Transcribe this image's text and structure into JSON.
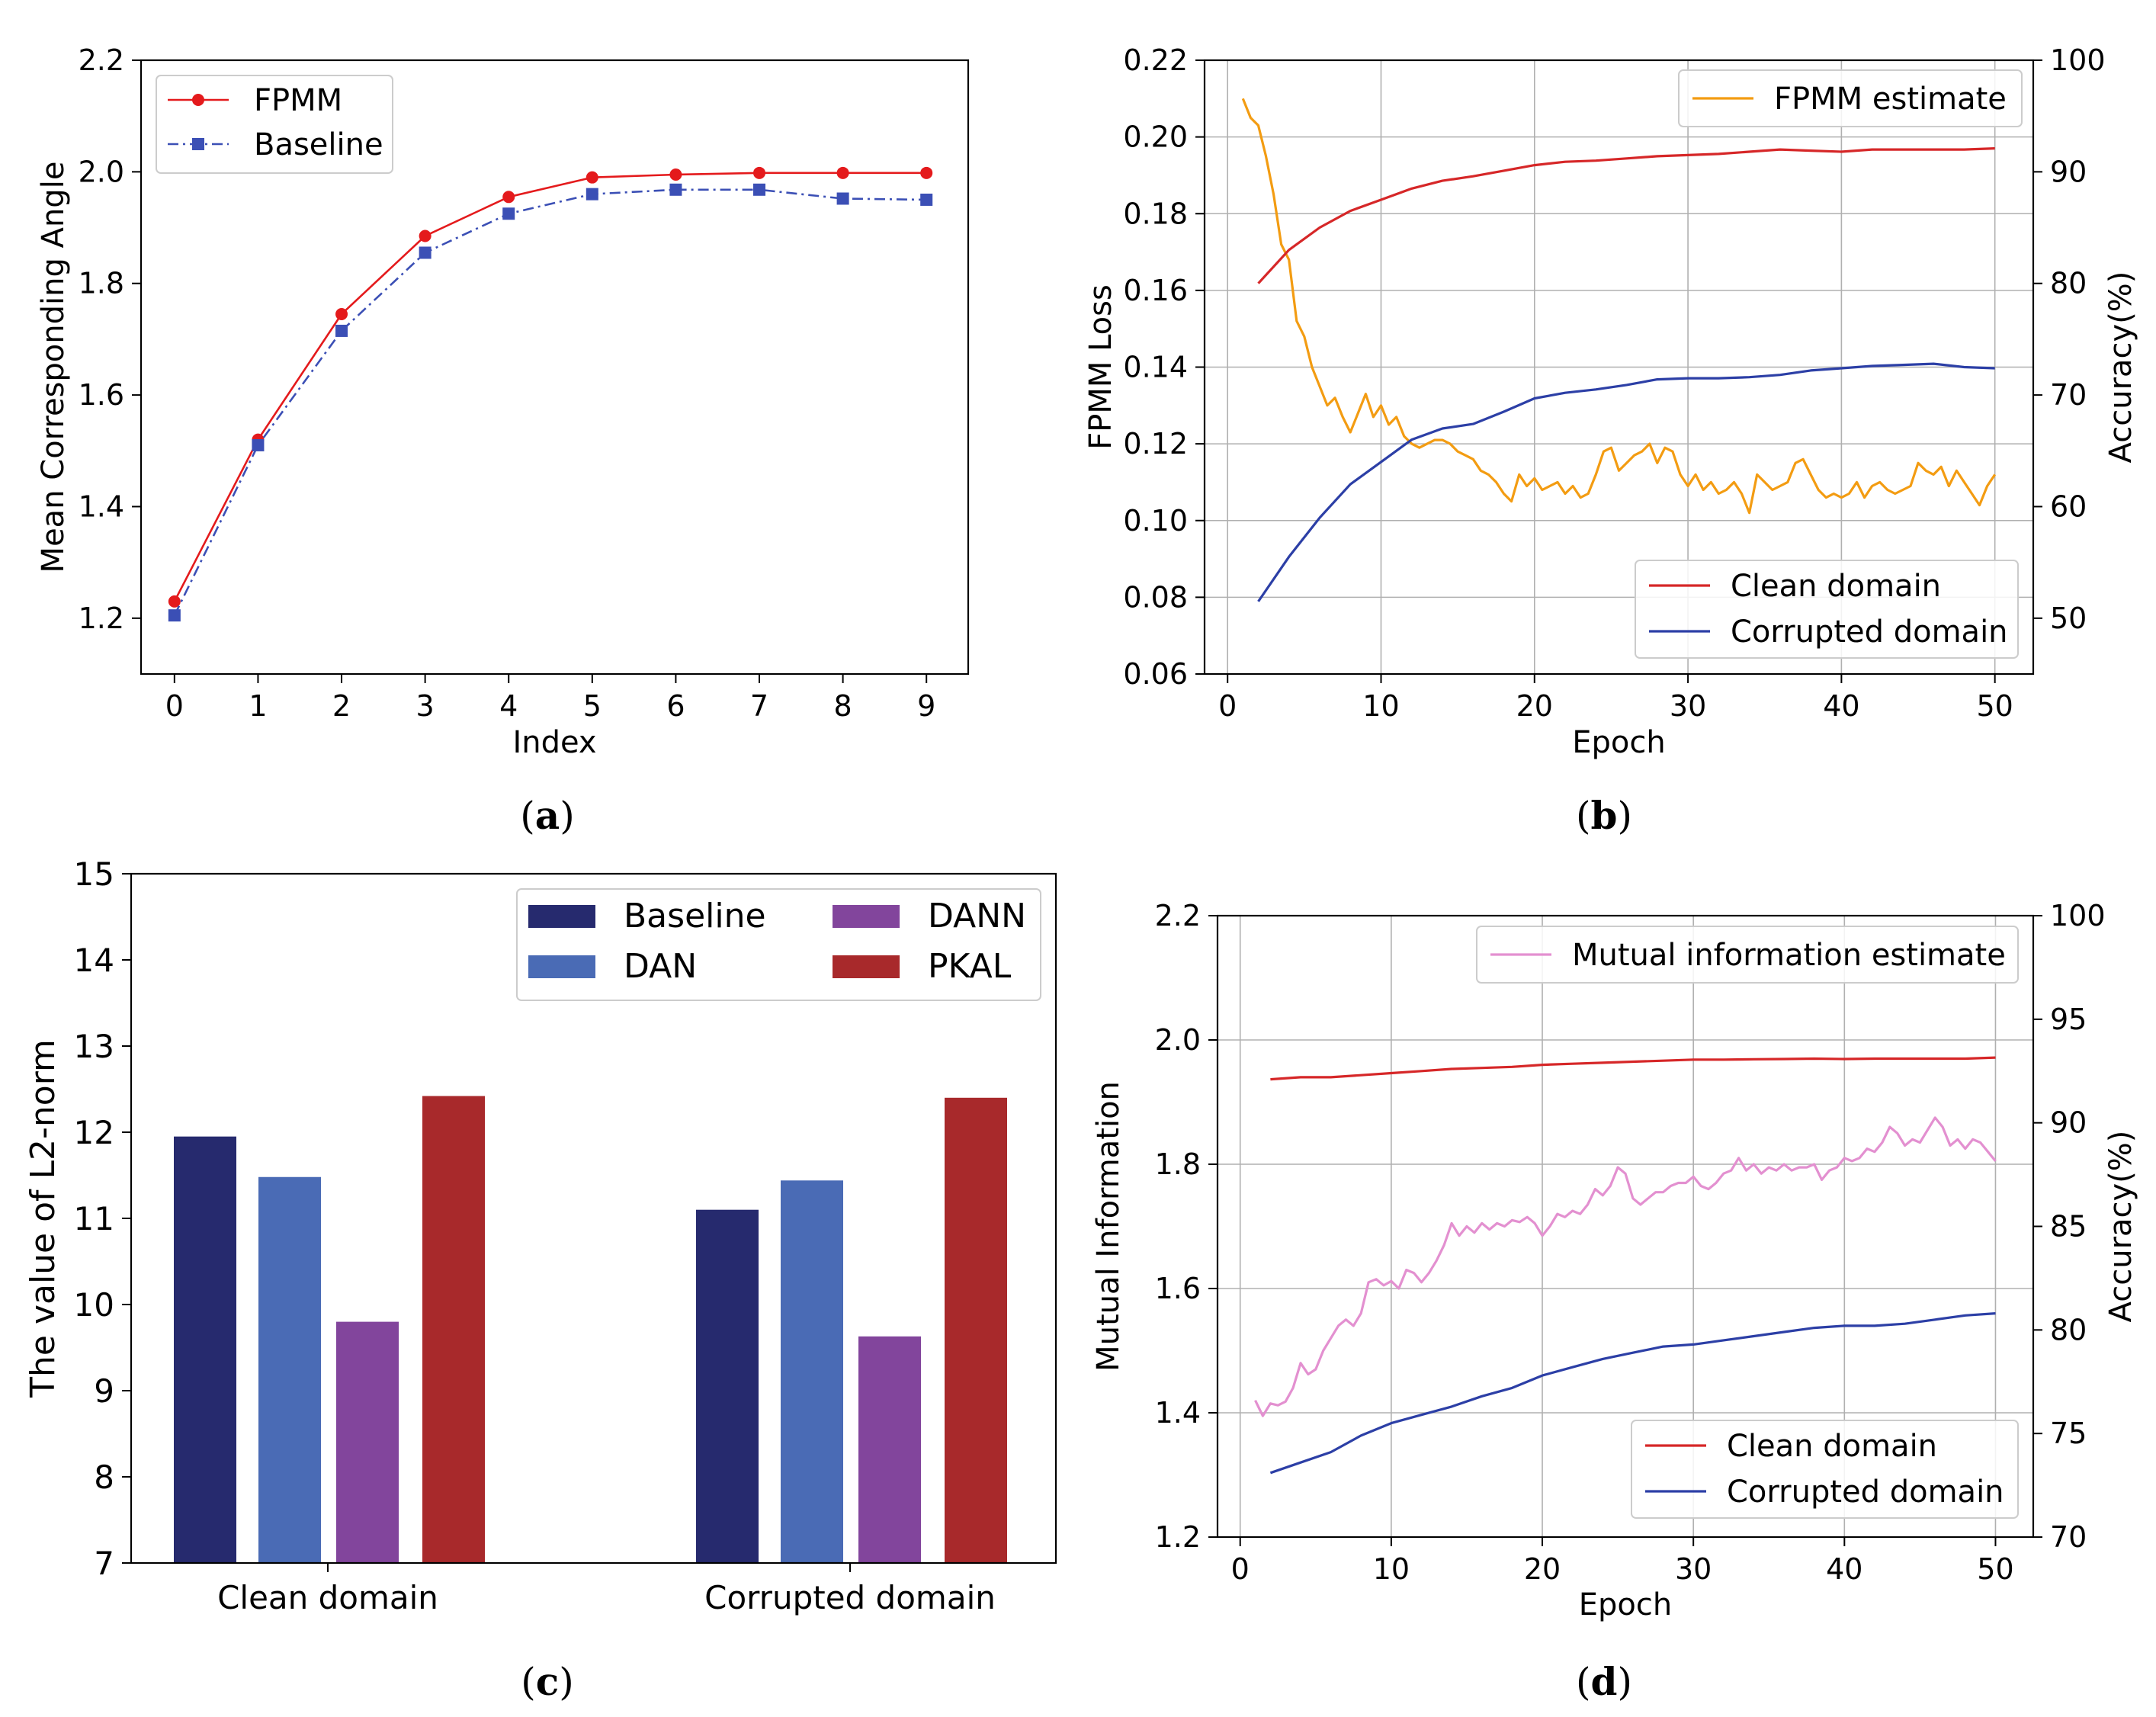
{
  "chart_data": [
    {
      "id": "a",
      "type": "line",
      "caption": "a",
      "xlabel": "Index",
      "ylabel": "Mean Corresponding Angle",
      "xlim": [
        -0.4,
        9.5
      ],
      "ylim": [
        1.1,
        2.2
      ],
      "xticks": [
        0,
        1,
        2,
        3,
        4,
        5,
        6,
        7,
        8,
        9
      ],
      "yticks": [
        1.2,
        1.4,
        1.6,
        1.8,
        2.0,
        2.2
      ],
      "ytick_labels": [
        "1.2",
        "1.4",
        "1.6",
        "1.8",
        "2.0",
        "2.2"
      ],
      "grid": false,
      "legend_position": "top-left",
      "series": [
        {
          "name": "FPMM",
          "color": "#e41a1c",
          "style": "solid",
          "marker": "circle",
          "x": [
            0,
            1,
            2,
            3,
            4,
            5,
            6,
            7,
            8,
            9
          ],
          "values": [
            1.23,
            1.52,
            1.745,
            1.885,
            1.955,
            1.99,
            1.995,
            1.998,
            1.998,
            1.998
          ]
        },
        {
          "name": "Baseline",
          "color": "#3b4fb5",
          "style": "dashdot",
          "marker": "square",
          "x": [
            0,
            1,
            2,
            3,
            4,
            5,
            6,
            7,
            8,
            9
          ],
          "values": [
            1.205,
            1.51,
            1.715,
            1.855,
            1.925,
            1.96,
            1.968,
            1.968,
            1.952,
            1.95
          ]
        }
      ]
    },
    {
      "id": "b",
      "type": "line",
      "caption": "b",
      "xlabel": "Epoch",
      "ylabel": "FPMM Loss",
      "ylabel_right": "Accuracy(%)",
      "xlim": [
        -1.5,
        52.5
      ],
      "ylim": [
        0.06,
        0.22
      ],
      "ylim_right": [
        45,
        100
      ],
      "xticks": [
        0,
        10,
        20,
        30,
        40,
        50
      ],
      "yticks": [
        0.06,
        0.08,
        0.1,
        0.12,
        0.14,
        0.16,
        0.18,
        0.2,
        0.22
      ],
      "ytick_labels": [
        "0.06",
        "0.08",
        "0.10",
        "0.12",
        "0.14",
        "0.16",
        "0.18",
        "0.20",
        "0.22"
      ],
      "yticks_right": [
        50,
        60,
        70,
        80,
        90,
        100
      ],
      "grid": true,
      "legend_positions": [
        "top-right",
        "lower-right"
      ],
      "series": [
        {
          "name": "FPMM estimate",
          "color": "#f39c12",
          "axis": "left",
          "x": [
            1,
            1.5,
            2,
            2.5,
            3,
            3.5,
            4,
            4.5,
            5,
            5.5,
            6,
            6.5,
            7,
            7.5,
            8,
            8.5,
            9,
            9.5,
            10,
            10.5,
            11,
            11.5,
            12,
            12.5,
            13,
            13.5,
            14,
            14.5,
            15,
            15.5,
            16,
            16.5,
            17,
            17.5,
            18,
            18.5,
            19,
            19.5,
            20,
            20.5,
            21,
            21.5,
            22,
            22.5,
            23,
            23.5,
            24,
            24.5,
            25,
            25.5,
            26,
            26.5,
            27,
            27.5,
            28,
            28.5,
            29,
            29.5,
            30,
            30.5,
            31,
            31.5,
            32,
            32.5,
            33,
            33.5,
            34,
            34.5,
            35,
            35.5,
            36,
            36.5,
            37,
            37.5,
            38,
            38.5,
            39,
            39.5,
            40,
            40.5,
            41,
            41.5,
            42,
            42.5,
            43,
            43.5,
            44,
            44.5,
            45,
            45.5,
            46,
            46.5,
            47,
            47.5,
            48,
            48.5,
            49,
            49.5,
            50
          ],
          "values": [
            0.21,
            0.205,
            0.203,
            0.195,
            0.185,
            0.172,
            0.168,
            0.152,
            0.148,
            0.14,
            0.135,
            0.13,
            0.132,
            0.127,
            0.123,
            0.128,
            0.133,
            0.127,
            0.13,
            0.125,
            0.127,
            0.122,
            0.12,
            0.119,
            0.12,
            0.121,
            0.121,
            0.12,
            0.118,
            0.117,
            0.116,
            0.113,
            0.112,
            0.11,
            0.107,
            0.105,
            0.112,
            0.109,
            0.111,
            0.108,
            0.109,
            0.11,
            0.107,
            0.109,
            0.106,
            0.107,
            0.112,
            0.118,
            0.119,
            0.113,
            0.115,
            0.117,
            0.118,
            0.12,
            0.115,
            0.119,
            0.118,
            0.112,
            0.109,
            0.112,
            0.108,
            0.11,
            0.107,
            0.108,
            0.11,
            0.107,
            0.102,
            0.112,
            0.11,
            0.108,
            0.109,
            0.11,
            0.115,
            0.116,
            0.112,
            0.108,
            0.106,
            0.107,
            0.106,
            0.107,
            0.11,
            0.106,
            0.109,
            0.11,
            0.108,
            0.107,
            0.108,
            0.109,
            0.115,
            0.113,
            0.112,
            0.114,
            0.109,
            0.113,
            0.11,
            0.107,
            0.104,
            0.109,
            0.112
          ]
        },
        {
          "name": "Clean domain",
          "color": "#d62728",
          "axis": "right",
          "x": [
            2,
            4,
            6,
            8,
            10,
            12,
            14,
            16,
            18,
            20,
            22,
            24,
            26,
            28,
            30,
            32,
            34,
            36,
            38,
            40,
            42,
            44,
            46,
            48,
            50
          ],
          "values": [
            80,
            83,
            85,
            86.5,
            87.5,
            88.5,
            89.2,
            89.6,
            90.1,
            90.6,
            90.9,
            91,
            91.2,
            91.4,
            91.5,
            91.6,
            91.8,
            92,
            91.9,
            91.8,
            92,
            92,
            92,
            92,
            92.1
          ]
        },
        {
          "name": "Corrupted domain",
          "color": "#2c3fa6",
          "axis": "right",
          "x": [
            2,
            4,
            6,
            8,
            10,
            12,
            14,
            16,
            18,
            20,
            22,
            24,
            26,
            28,
            30,
            32,
            34,
            36,
            38,
            40,
            42,
            44,
            46,
            48,
            50
          ],
          "values": [
            51.5,
            55.5,
            59,
            62,
            64,
            66,
            67,
            67.4,
            68.5,
            69.7,
            70.2,
            70.5,
            70.9,
            71.4,
            71.5,
            71.5,
            71.6,
            71.8,
            72.2,
            72.4,
            72.6,
            72.7,
            72.8,
            72.5,
            72.4
          ]
        }
      ]
    },
    {
      "id": "c",
      "type": "bar",
      "caption": "c",
      "xlabel": "",
      "ylabel": "The value of L2-norm",
      "ylim": [
        7,
        15
      ],
      "yticks": [
        7,
        8,
        9,
        10,
        11,
        12,
        13,
        14,
        15
      ],
      "categories": [
        "Clean domain",
        "Corrupted domain"
      ],
      "grid": false,
      "legend_position": "top-right",
      "series": [
        {
          "name": "Baseline",
          "color": "#262a6e",
          "values": [
            11.95,
            11.1
          ]
        },
        {
          "name": "DAN",
          "color": "#4a6bb5",
          "values": [
            11.48,
            11.44
          ]
        },
        {
          "name": "DANN",
          "color": "#82459c",
          "values": [
            9.8,
            9.63
          ]
        },
        {
          "name": "PKAL",
          "color": "#a8292b",
          "values": [
            12.42,
            12.4
          ]
        }
      ]
    },
    {
      "id": "d",
      "type": "line",
      "caption": "d",
      "xlabel": "Epoch",
      "ylabel": "Mutual Information",
      "ylabel_right": "Accuracy(%)",
      "xlim": [
        -1.5,
        52.5
      ],
      "ylim": [
        1.2,
        2.2
      ],
      "ylim_right": [
        70,
        100
      ],
      "xticks": [
        0,
        10,
        20,
        30,
        40,
        50
      ],
      "yticks": [
        1.2,
        1.4,
        1.6,
        1.8,
        2.0,
        2.2
      ],
      "ytick_labels": [
        "1.2",
        "1.4",
        "1.6",
        "1.8",
        "2.0",
        "2.2"
      ],
      "yticks_right": [
        70,
        75,
        80,
        85,
        90,
        95,
        100
      ],
      "grid": true,
      "legend_positions": [
        "top-right",
        "lower-right"
      ],
      "series": [
        {
          "name": "Mutual information estimate",
          "color": "#e390d0",
          "axis": "left",
          "x": [
            1,
            1.5,
            2,
            2.5,
            3,
            3.5,
            4,
            4.5,
            5,
            5.5,
            6,
            6.5,
            7,
            7.5,
            8,
            8.5,
            9,
            9.5,
            10,
            10.5,
            11,
            11.5,
            12,
            12.5,
            13,
            13.5,
            14,
            14.5,
            15,
            15.5,
            16,
            16.5,
            17,
            17.5,
            18,
            18.5,
            19,
            19.5,
            20,
            20.5,
            21,
            21.5,
            22,
            22.5,
            23,
            23.5,
            24,
            24.5,
            25,
            25.5,
            26,
            26.5,
            27,
            27.5,
            28,
            28.5,
            29,
            29.5,
            30,
            30.5,
            31,
            31.5,
            32,
            32.5,
            33,
            33.5,
            34,
            34.5,
            35,
            35.5,
            36,
            36.5,
            37,
            37.5,
            38,
            38.5,
            39,
            39.5,
            40,
            40.5,
            41,
            41.5,
            42,
            42.5,
            43,
            43.5,
            44,
            44.5,
            45,
            45.5,
            46,
            46.5,
            47,
            47.5,
            48,
            48.5,
            49,
            49.5,
            50
          ],
          "values": [
            1.42,
            1.395,
            1.415,
            1.412,
            1.418,
            1.44,
            1.48,
            1.462,
            1.47,
            1.5,
            1.52,
            1.54,
            1.55,
            1.54,
            1.56,
            1.61,
            1.615,
            1.605,
            1.612,
            1.6,
            1.63,
            1.625,
            1.61,
            1.625,
            1.645,
            1.67,
            1.705,
            1.685,
            1.7,
            1.69,
            1.705,
            1.695,
            1.705,
            1.7,
            1.71,
            1.707,
            1.715,
            1.705,
            1.685,
            1.7,
            1.72,
            1.715,
            1.725,
            1.72,
            1.735,
            1.76,
            1.75,
            1.765,
            1.795,
            1.785,
            1.745,
            1.735,
            1.745,
            1.755,
            1.755,
            1.765,
            1.77,
            1.77,
            1.78,
            1.765,
            1.76,
            1.77,
            1.785,
            1.79,
            1.81,
            1.79,
            1.8,
            1.785,
            1.795,
            1.79,
            1.8,
            1.79,
            1.795,
            1.795,
            1.8,
            1.775,
            1.79,
            1.795,
            1.81,
            1.805,
            1.81,
            1.825,
            1.82,
            1.835,
            1.86,
            1.85,
            1.83,
            1.84,
            1.835,
            1.855,
            1.875,
            1.86,
            1.83,
            1.84,
            1.825,
            1.84,
            1.835,
            1.82,
            1.805
          ]
        },
        {
          "name": "Clean domain",
          "color": "#d62728",
          "axis": "right",
          "x": [
            2,
            4,
            6,
            8,
            10,
            12,
            14,
            16,
            18,
            20,
            22,
            24,
            26,
            28,
            30,
            32,
            34,
            36,
            38,
            40,
            42,
            44,
            46,
            48,
            50
          ],
          "values": [
            92.1,
            92.2,
            92.2,
            92.3,
            92.4,
            92.5,
            92.6,
            92.65,
            92.7,
            92.8,
            92.85,
            92.9,
            92.95,
            93,
            93.05,
            93.05,
            93.07,
            93.08,
            93.1,
            93.08,
            93.1,
            93.1,
            93.1,
            93.1,
            93.15
          ]
        },
        {
          "name": "Corrupted domain",
          "color": "#2c3fa6",
          "axis": "right",
          "x": [
            2,
            4,
            6,
            8,
            10,
            12,
            14,
            16,
            18,
            20,
            22,
            24,
            26,
            28,
            30,
            32,
            34,
            36,
            38,
            40,
            42,
            44,
            46,
            48,
            50
          ],
          "values": [
            73.1,
            73.6,
            74.1,
            74.9,
            75.5,
            75.9,
            76.3,
            76.8,
            77.2,
            77.8,
            78.2,
            78.6,
            78.9,
            79.2,
            79.3,
            79.5,
            79.7,
            79.9,
            80.1,
            80.2,
            80.2,
            80.3,
            80.5,
            80.7,
            80.8
          ]
        }
      ]
    }
  ]
}
